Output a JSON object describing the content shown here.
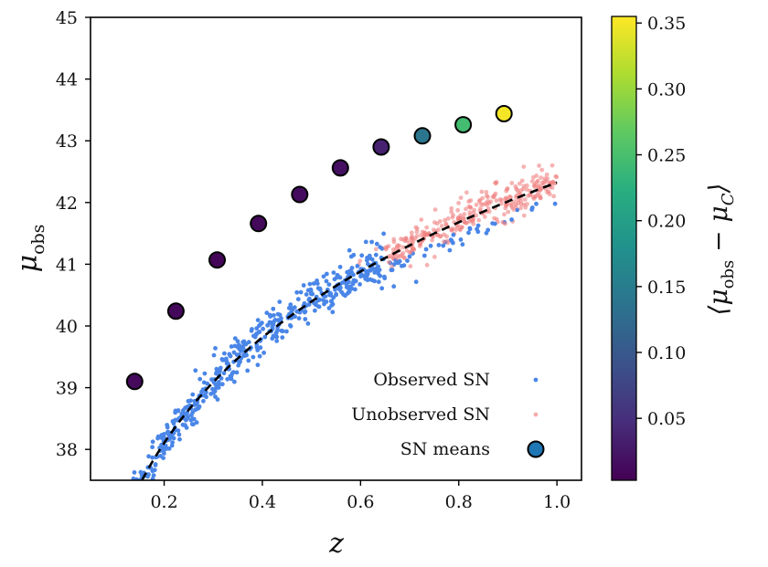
{
  "chart_data": {
    "type": "scatter",
    "xlabel": "z",
    "ylabel": "μ_obs",
    "colorbar_label": "⟨μ_obs − μ_C⟩",
    "xlim": [
      0.05,
      1.05
    ],
    "ylim": [
      37.5,
      45.0
    ],
    "xticks": [
      {
        "value": 0.2,
        "label": "0.2"
      },
      {
        "value": 0.4,
        "label": "0.4"
      },
      {
        "value": 0.6,
        "label": "0.6"
      },
      {
        "value": 0.8,
        "label": "0.8"
      },
      {
        "value": 1.0,
        "label": "1.0"
      }
    ],
    "yticks": [
      {
        "value": 38,
        "label": "38"
      },
      {
        "value": 39,
        "label": "39"
      },
      {
        "value": 40,
        "label": "40"
      },
      {
        "value": 41,
        "label": "41"
      },
      {
        "value": 42,
        "label": "42"
      },
      {
        "value": 43,
        "label": "43"
      },
      {
        "value": 44,
        "label": "44"
      },
      {
        "value": 45,
        "label": "45"
      }
    ],
    "colorbar": {
      "range": [
        0.003,
        0.355
      ],
      "ticks": [
        {
          "value": 0.05,
          "label": "0.05"
        },
        {
          "value": 0.1,
          "label": "0.10"
        },
        {
          "value": 0.15,
          "label": "0.15"
        },
        {
          "value": 0.2,
          "label": "0.20"
        },
        {
          "value": 0.25,
          "label": "0.25"
        },
        {
          "value": 0.3,
          "label": "0.30"
        },
        {
          "value": 0.35,
          "label": "0.35"
        }
      ],
      "colormap": "viridis"
    },
    "series": [
      {
        "name": "Observed SN",
        "kind": "scatter",
        "color": "#4a86e8"
      },
      {
        "name": "Unobserved SN",
        "kind": "scatter",
        "color": "#f08080"
      },
      {
        "name": "SN means",
        "kind": "scatter",
        "color": "#1f77b4",
        "points": [
          {
            "x": 0.14,
            "y": 39.1,
            "c": 0.012
          },
          {
            "x": 0.224,
            "y": 40.24,
            "c": 0.01
          },
          {
            "x": 0.308,
            "y": 41.07,
            "c": 0.008
          },
          {
            "x": 0.392,
            "y": 41.66,
            "c": 0.011
          },
          {
            "x": 0.476,
            "y": 42.13,
            "c": 0.014
          },
          {
            "x": 0.559,
            "y": 42.56,
            "c": 0.018
          },
          {
            "x": 0.642,
            "y": 42.9,
            "c": 0.035
          },
          {
            "x": 0.726,
            "y": 43.08,
            "c": 0.14
          },
          {
            "x": 0.809,
            "y": 43.26,
            "c": 0.245
          },
          {
            "x": 0.892,
            "y": 43.44,
            "c": 0.35
          }
        ]
      }
    ],
    "model_curve": {
      "style": "dashed",
      "color": "#000000"
    },
    "legend": {
      "placement": "lower-right",
      "entries": [
        "Observed SN",
        "Unobserved SN",
        "SN means"
      ]
    },
    "grid": false
  }
}
